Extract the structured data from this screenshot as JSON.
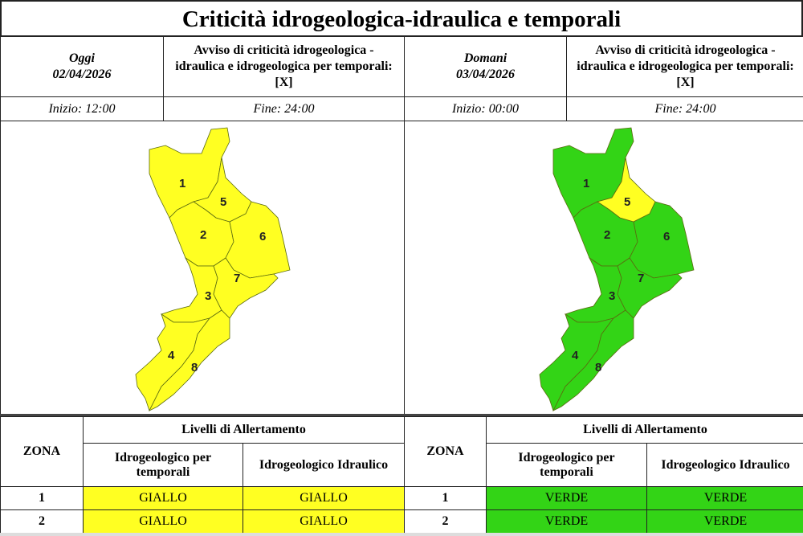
{
  "title": "Criticità idrogeologica-idraulica e temporali",
  "colors": {
    "giallo": "#ffff22",
    "verde": "#33d416"
  },
  "days": [
    {
      "label": "Oggi",
      "date": "02/04/2026",
      "notice": "Avviso di criticità idrogeologica - idraulica e idrogeologica per temporali: [X]",
      "start": "Inizio: 12:00",
      "end": "Fine: 24:00",
      "zone_colors": {
        "1": "#ffff22",
        "2": "#ffff22",
        "3": "#ffff22",
        "4": "#ffff22",
        "5": "#ffff22",
        "6": "#ffff22",
        "7": "#ffff22",
        "8": "#ffff22"
      },
      "table": {
        "zona": "ZONA",
        "levels": "Livelli di Allertamento",
        "col1": "Idrogeologico per temporali",
        "col2": "Idrogeologico Idraulico",
        "rows": [
          {
            "zona": "1",
            "a": "GIALLO",
            "b": "GIALLO"
          },
          {
            "zona": "2",
            "a": "GIALLO",
            "b": "GIALLO"
          }
        ]
      }
    },
    {
      "label": "Domani",
      "date": "03/04/2026",
      "notice": "Avviso di criticità idrogeologica - idraulica e idrogeologica per temporali: [X]",
      "start": "Inizio: 00:00",
      "end": "Fine: 24:00",
      "zone_colors": {
        "1": "#33d416",
        "2": "#33d416",
        "3": "#33d416",
        "4": "#33d416",
        "5": "#ffff22",
        "6": "#33d416",
        "7": "#33d416",
        "8": "#33d416"
      },
      "table": {
        "zona": "ZONA",
        "levels": "Livelli di Allertamento",
        "col1": "Idrogeologico per temporali",
        "col2": "Idrogeologico Idraulico",
        "rows": [
          {
            "zona": "1",
            "a": "VERDE",
            "b": "VERDE"
          },
          {
            "zona": "2",
            "a": "VERDE",
            "b": "VERDE"
          }
        ]
      }
    }
  ],
  "zones": [
    "1",
    "2",
    "3",
    "4",
    "5",
    "6",
    "7",
    "8"
  ]
}
